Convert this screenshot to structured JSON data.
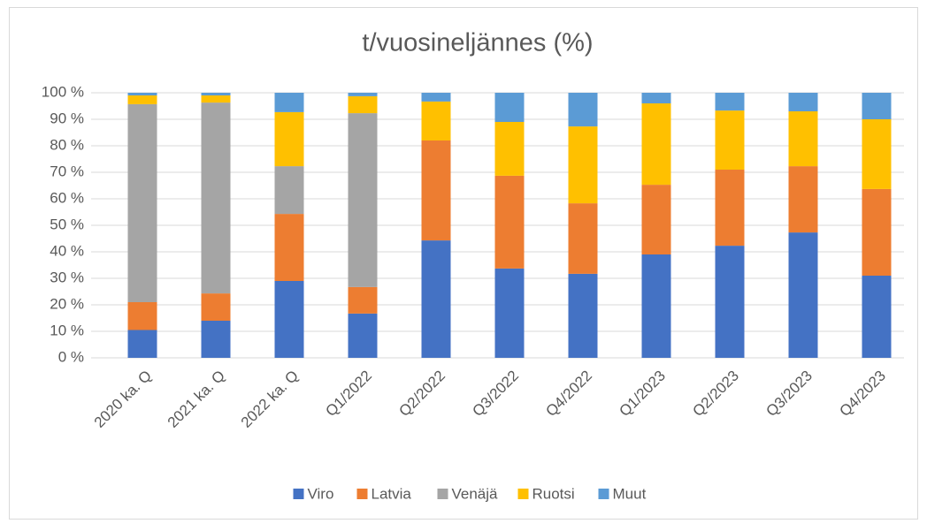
{
  "chart_data": {
    "type": "stacked_bar_100",
    "title": "t/vuosineljännes (%)",
    "categories": [
      "2020 ka. Q",
      "2021 ka. Q",
      "2022 ka. Q",
      "Q1/2022",
      "Q2/2022",
      "Q3/2022",
      "Q4/2022",
      "Q1/2023",
      "Q2/2023",
      "Q3/2023",
      "Q4/2023"
    ],
    "series": [
      {
        "name": "Viro",
        "color": "#4472c4",
        "values": [
          10.5,
          14,
          29,
          16.7,
          44.3,
          33.7,
          31.7,
          39,
          42.3,
          47.3,
          31
        ]
      },
      {
        "name": "Latvia",
        "color": "#ed7d31",
        "values": [
          10.5,
          10.3,
          25.3,
          10,
          37.7,
          35,
          26.6,
          26.3,
          28.7,
          25,
          32.7
        ]
      },
      {
        "name": "Venäjä",
        "color": "#a5a5a5",
        "values": [
          74.7,
          72,
          18,
          65.6,
          0,
          0,
          0,
          0,
          0,
          0,
          0
        ]
      },
      {
        "name": "Ruotsi",
        "color": "#ffc000",
        "values": [
          3.3,
          2.7,
          20.4,
          6.4,
          14.7,
          20.3,
          29,
          30.7,
          22.3,
          20.7,
          26.3
        ]
      },
      {
        "name": "Muut",
        "color": "#5b9bd5",
        "values": [
          1,
          1,
          7.3,
          1.3,
          3.3,
          11,
          12.7,
          4,
          6.7,
          7,
          10
        ]
      }
    ],
    "ylim": [
      0,
      100
    ],
    "yticks": [
      {
        "value": 0,
        "label": "0 %"
      },
      {
        "value": 10,
        "label": "10 %"
      },
      {
        "value": 20,
        "label": "20 %"
      },
      {
        "value": 30,
        "label": "30 %"
      },
      {
        "value": 40,
        "label": "40 %"
      },
      {
        "value": 50,
        "label": "50 %"
      },
      {
        "value": 60,
        "label": "60 %"
      },
      {
        "value": 70,
        "label": "70 %"
      },
      {
        "value": 80,
        "label": "80 %"
      },
      {
        "value": 90,
        "label": "90 %"
      },
      {
        "value": 100,
        "label": "100 %"
      }
    ],
    "grid": true,
    "legend": "bottom"
  }
}
